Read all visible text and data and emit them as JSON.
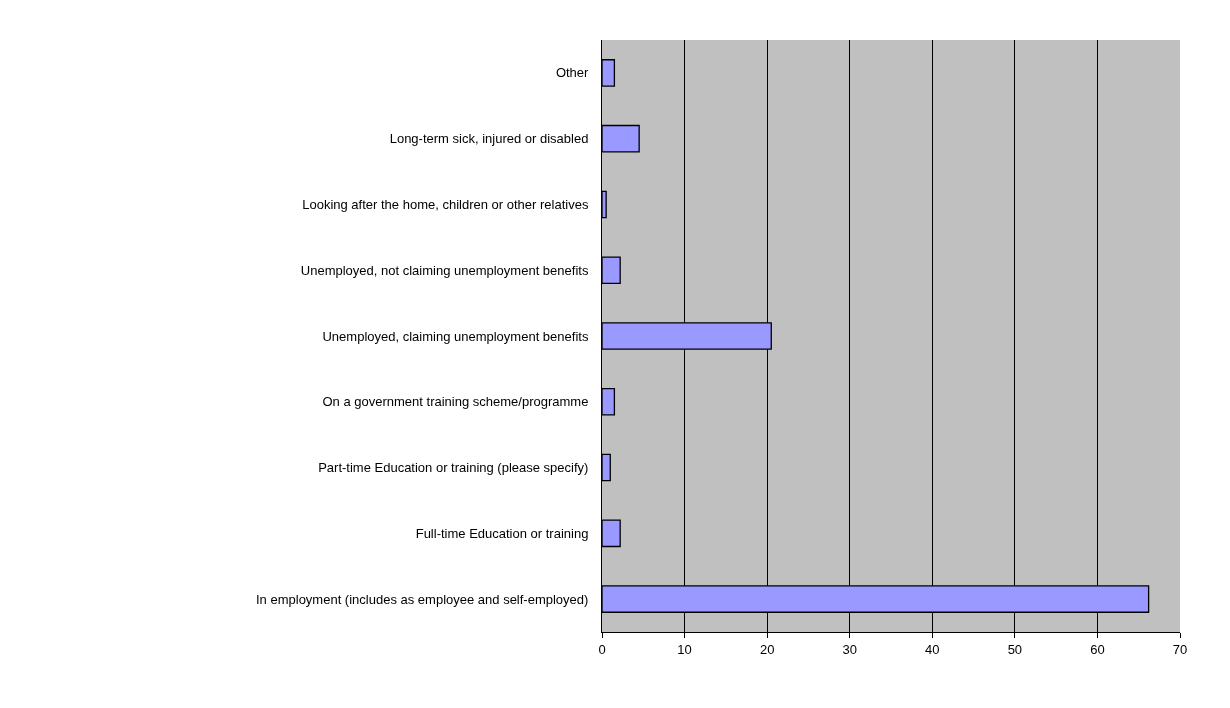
{
  "chart_data": {
    "type": "bar",
    "orientation": "horizontal",
    "categories": [
      "Other",
      "Long-term sick, injured or disabled",
      "Looking after the home, children or other relatives",
      "Unemployed, not claiming unemployment benefits",
      "Unemployed, claiming unemployment benefits",
      "On a government training scheme/programme",
      "Part-time Education or training (please specify)",
      "Full-time Education or training",
      "In employment (includes as employee and self-employed)"
    ],
    "values": [
      1.5,
      4.5,
      0.5,
      2.2,
      20.5,
      1.5,
      1.0,
      2.2,
      66.2
    ],
    "color": "#9999ff",
    "xlim": [
      0,
      70
    ],
    "xticks": [
      0,
      10,
      20,
      30,
      40,
      50,
      60,
      70
    ],
    "grid": "x"
  }
}
